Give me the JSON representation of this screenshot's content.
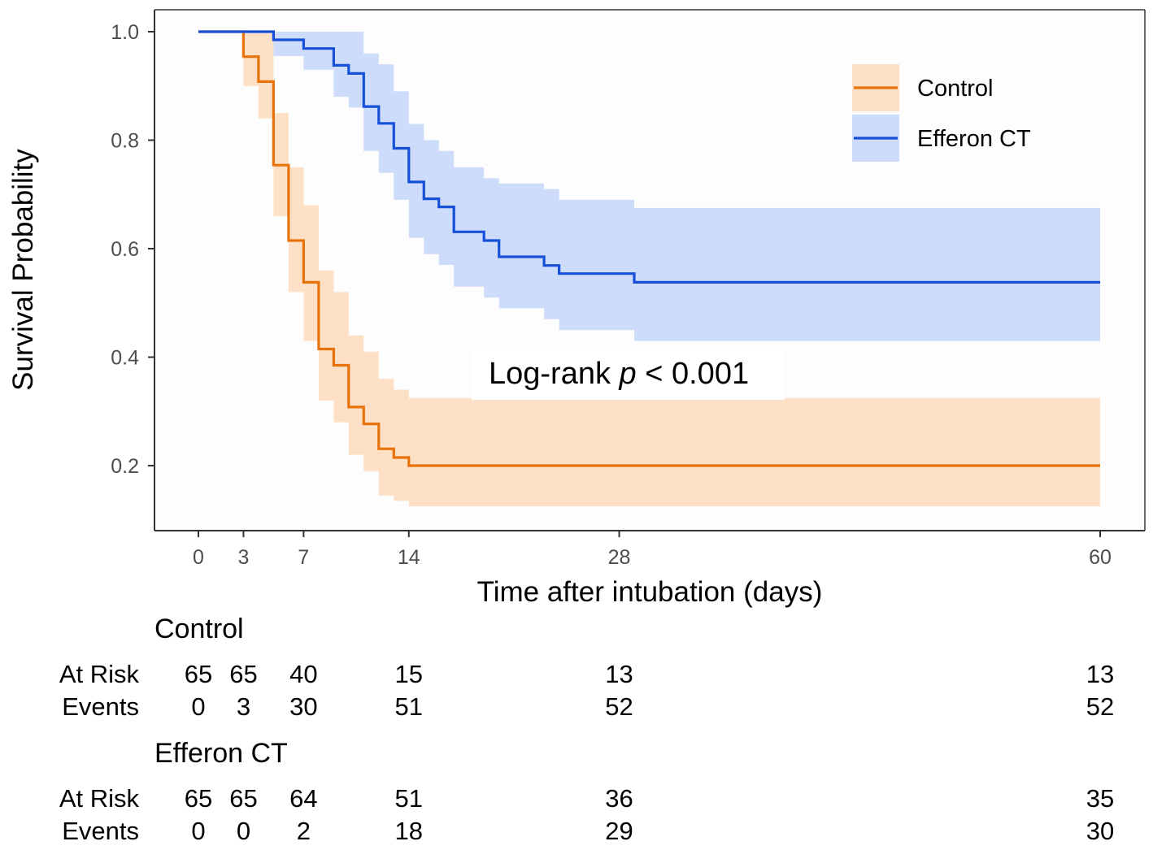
{
  "chart_data": {
    "type": "line",
    "subtype": "kaplan-meier-step",
    "title": "",
    "xlabel": "Time after intubation (days)",
    "ylabel": "Survival Probability",
    "xlim": [
      -3,
      61
    ],
    "ylim": [
      0.08,
      1.04
    ],
    "x_ticks": [
      0,
      3,
      7,
      14,
      28,
      60
    ],
    "y_ticks": [
      0.2,
      0.4,
      0.6,
      0.8,
      1.0
    ],
    "y_tick_labels": [
      "0.2",
      "0.4",
      "0.6",
      "0.8",
      "1.0"
    ],
    "grid": false,
    "legend_position": "top-right",
    "annotation": {
      "prefix": "Log-rank ",
      "italic": "p",
      "suffix": " < 0.001"
    },
    "series": [
      {
        "name": "Control",
        "color": "#e8730a",
        "band_color": "#fde0c5",
        "times": [
          0,
          3,
          4,
          5,
          6,
          7,
          8,
          9,
          10,
          11,
          12,
          13,
          14,
          15,
          60
        ],
        "surv": [
          1.0,
          0.954,
          0.908,
          0.754,
          0.615,
          0.538,
          0.415,
          0.385,
          0.308,
          0.277,
          0.231,
          0.215,
          0.2,
          0.2,
          0.2
        ],
        "upper": [
          1.0,
          1.0,
          1.0,
          0.85,
          0.75,
          0.68,
          0.56,
          0.52,
          0.44,
          0.41,
          0.36,
          0.34,
          0.325,
          0.325,
          0.325
        ],
        "lower": [
          1.0,
          0.9,
          0.84,
          0.66,
          0.52,
          0.43,
          0.32,
          0.28,
          0.22,
          0.19,
          0.145,
          0.135,
          0.125,
          0.125,
          0.125
        ]
      },
      {
        "name": "Efferon CT",
        "color": "#1650d8",
        "band_color": "#cddcfa",
        "times": [
          0,
          5,
          7,
          9,
          10,
          11,
          12,
          13,
          14,
          15,
          16,
          17,
          19,
          20,
          23,
          24,
          29,
          60
        ],
        "surv": [
          1.0,
          0.985,
          0.969,
          0.938,
          0.923,
          0.862,
          0.831,
          0.785,
          0.723,
          0.692,
          0.677,
          0.631,
          0.615,
          0.585,
          0.569,
          0.554,
          0.538,
          0.538
        ],
        "upper": [
          1.0,
          1.0,
          1.0,
          1.0,
          1.0,
          0.96,
          0.94,
          0.89,
          0.83,
          0.8,
          0.78,
          0.75,
          0.73,
          0.72,
          0.71,
          0.69,
          0.675,
          0.675
        ],
        "lower": [
          1.0,
          0.955,
          0.93,
          0.88,
          0.86,
          0.78,
          0.74,
          0.69,
          0.62,
          0.59,
          0.57,
          0.53,
          0.51,
          0.49,
          0.47,
          0.45,
          0.43,
          0.43
        ]
      }
    ],
    "risk_table": {
      "times": [
        0,
        3,
        7,
        14,
        28,
        60
      ],
      "row_labels": [
        "At Risk",
        "Events"
      ],
      "groups": [
        {
          "name": "Control",
          "at_risk": [
            "65",
            "65",
            "40",
            "15",
            "13",
            "13"
          ],
          "events": [
            "0",
            "3",
            "30",
            "51",
            "52",
            "52"
          ]
        },
        {
          "name": "Efferon CT",
          "at_risk": [
            "65",
            "65",
            "64",
            "51",
            "36",
            "35"
          ],
          "events": [
            "0",
            "0",
            "2",
            "18",
            "29",
            "30"
          ]
        }
      ]
    }
  }
}
